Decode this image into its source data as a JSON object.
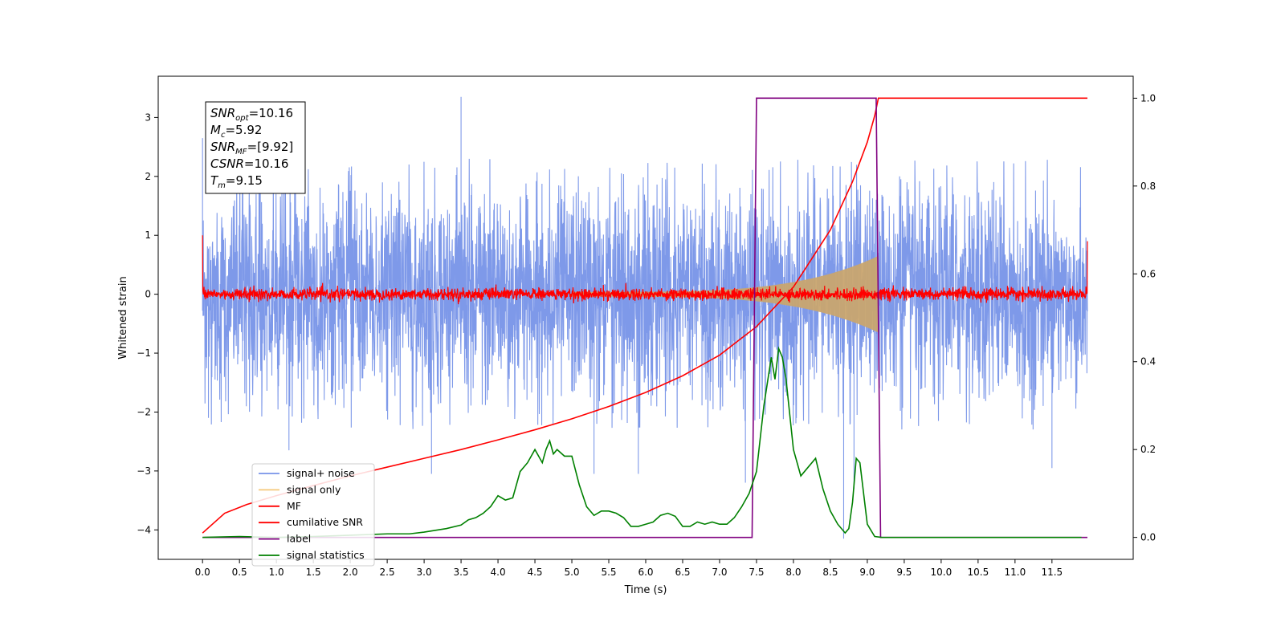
{
  "chart_data": {
    "type": "line",
    "xlabel": "Time (s)",
    "ylabel": "Whitened strain",
    "xlim": [
      -0.6,
      12.6
    ],
    "ylim": [
      -4.5,
      3.7
    ],
    "y2lim": [
      -0.05,
      1.05
    ],
    "x_ticks": [
      0.0,
      0.5,
      1.0,
      1.5,
      2.0,
      2.5,
      3.0,
      3.5,
      4.0,
      4.5,
      5.0,
      5.5,
      6.0,
      6.5,
      7.0,
      7.5,
      8.0,
      8.5,
      9.0,
      9.5,
      10.0,
      10.5,
      11.0,
      11.5
    ],
    "x_tick_labels": [
      "0.0",
      "0.5",
      "1.0",
      "1.5",
      "2.0",
      "2.5",
      "3.0",
      "3.5",
      "4.0",
      "4.5",
      "5.0",
      "5.5",
      "6.0",
      "6.5",
      "7.0",
      "7.5",
      "8.0",
      "8.5",
      "9.0",
      "9.5",
      "10.0",
      "10.5",
      "11.0",
      "11.5"
    ],
    "y_ticks": [
      3,
      2,
      1,
      0,
      -1,
      -2,
      -3,
      -4
    ],
    "y_tick_labels": [
      "3",
      "2",
      "1",
      "0",
      "−1",
      "−2",
      "−3",
      "−4"
    ],
    "y2_ticks": [
      1.0,
      0.8,
      0.6,
      0.4,
      0.2,
      0.0
    ],
    "y2_tick_labels": [
      "1.0",
      "0.8",
      "0.6",
      "0.4",
      "0.2",
      "0.0"
    ],
    "annotation": [
      {
        "var": "SNR",
        "sub": "opt",
        "value": "=10.16"
      },
      {
        "var": "M",
        "sub": "c",
        "value": "=5.92"
      },
      {
        "var": "SNR",
        "sub": "MF",
        "value": "=[9.92]"
      },
      {
        "var": "CSNR",
        "sub": "",
        "value": "=10.16"
      },
      {
        "var": "T",
        "sub": "m",
        "value": "=9.15"
      }
    ],
    "legend": {
      "placement": "lower-left",
      "entries": [
        {
          "label": "signal+ noise",
          "color": "#7793e8"
        },
        {
          "label": "signal only",
          "color": "#f5c87a"
        },
        {
          "label": "MF",
          "color": "#ff0000"
        },
        {
          "label": "cumilative SNR",
          "color": "#ff0000"
        },
        {
          "label": "label",
          "color": "#800080"
        },
        {
          "label": "signal statistics",
          "color": "#008000"
        }
      ]
    },
    "series": [
      {
        "name": "signal+ noise",
        "axis": "left",
        "color": "#7793e8",
        "t_start": 0.0,
        "t_end": 11.98,
        "envelope_abs": 2.3,
        "peaks": [
          [
            0.0,
            2.65
          ],
          [
            0.08,
            -2.1
          ],
          [
            1.17,
            -2.65
          ],
          [
            3.1,
            -3.05
          ],
          [
            3.5,
            3.35
          ],
          [
            5.3,
            -3.05
          ],
          [
            5.9,
            -3.05
          ],
          [
            7.35,
            -3.2
          ],
          [
            8.68,
            -4.15
          ],
          [
            8.82,
            -3.3
          ],
          [
            11.5,
            -2.95
          ]
        ]
      },
      {
        "name": "signal only",
        "axis": "left",
        "color": "#f5c87a",
        "t_start": 5.0,
        "t_end": 9.15,
        "amp_start": 0.04,
        "amp_end": 0.65
      },
      {
        "name": "MF",
        "axis": "left",
        "color": "#ff0000",
        "t_start": 0.0,
        "t_end": 11.98,
        "noise_abs": 0.1,
        "edge_left": 1.0,
        "edge_right": 0.9
      },
      {
        "name": "cumilative SNR",
        "axis": "right",
        "x": [
          0.0,
          0.3,
          0.6,
          1.0,
          1.5,
          2.0,
          2.5,
          3.0,
          3.5,
          4.0,
          4.5,
          5.0,
          5.5,
          6.0,
          6.5,
          7.0,
          7.5,
          8.0,
          8.5,
          8.8,
          9.0,
          9.1,
          9.15,
          9.2,
          11.98
        ],
        "y": [
          0.01,
          0.055,
          0.075,
          0.095,
          0.118,
          0.14,
          0.16,
          0.18,
          0.2,
          0.222,
          0.245,
          0.27,
          0.298,
          0.33,
          0.368,
          0.415,
          0.48,
          0.57,
          0.7,
          0.81,
          0.9,
          0.96,
          1.0,
          1.0,
          1.0
        ]
      },
      {
        "name": "label",
        "axis": "right",
        "x": [
          0.0,
          7.44,
          7.5,
          9.12,
          9.18,
          11.98
        ],
        "y": [
          0.0,
          0.0,
          1.0,
          1.0,
          0.0,
          0.0
        ]
      },
      {
        "name": "signal statistics",
        "axis": "right",
        "x": [
          0.0,
          0.5,
          1.0,
          1.5,
          2.0,
          2.5,
          2.8,
          3.0,
          3.3,
          3.5,
          3.6,
          3.7,
          3.8,
          3.9,
          4.0,
          4.1,
          4.2,
          4.3,
          4.4,
          4.5,
          4.6,
          4.65,
          4.7,
          4.75,
          4.8,
          4.9,
          5.0,
          5.1,
          5.2,
          5.3,
          5.4,
          5.5,
          5.6,
          5.7,
          5.8,
          5.9,
          6.0,
          6.1,
          6.2,
          6.3,
          6.4,
          6.5,
          6.6,
          6.7,
          6.8,
          6.9,
          7.0,
          7.1,
          7.2,
          7.3,
          7.4,
          7.5,
          7.6,
          7.7,
          7.75,
          7.8,
          7.85,
          7.9,
          8.0,
          8.1,
          8.2,
          8.3,
          8.4,
          8.5,
          8.6,
          8.7,
          8.75,
          8.8,
          8.85,
          8.9,
          9.0,
          9.1,
          9.2,
          9.5,
          10.0,
          11.0,
          11.9
        ],
        "y": [
          0.0,
          0.002,
          0.0,
          0.002,
          0.005,
          0.008,
          0.008,
          0.012,
          0.02,
          0.028,
          0.04,
          0.045,
          0.055,
          0.07,
          0.095,
          0.085,
          0.09,
          0.15,
          0.17,
          0.2,
          0.17,
          0.2,
          0.22,
          0.19,
          0.2,
          0.185,
          0.185,
          0.12,
          0.07,
          0.05,
          0.06,
          0.06,
          0.055,
          0.045,
          0.025,
          0.025,
          0.03,
          0.035,
          0.05,
          0.055,
          0.048,
          0.025,
          0.025,
          0.035,
          0.03,
          0.035,
          0.03,
          0.03,
          0.045,
          0.07,
          0.1,
          0.15,
          0.3,
          0.41,
          0.36,
          0.43,
          0.41,
          0.36,
          0.2,
          0.14,
          0.16,
          0.18,
          0.11,
          0.06,
          0.03,
          0.01,
          0.02,
          0.08,
          0.18,
          0.17,
          0.03,
          0.002,
          0.0,
          0.0,
          0.0,
          0.0,
          0.0
        ]
      }
    ]
  }
}
